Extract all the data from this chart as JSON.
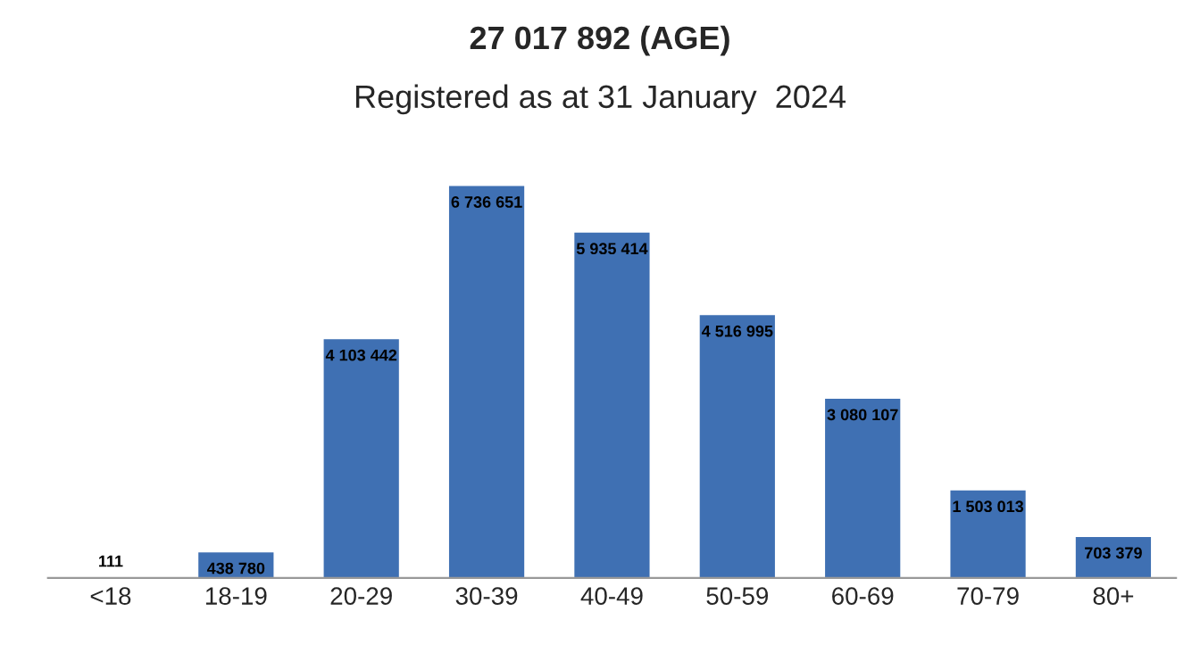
{
  "chart_data": {
    "type": "bar",
    "title": "27 017 892 (AGE)",
    "subtitle": "Registered as at 31 January  2024",
    "categories": [
      "<18",
      "18-19",
      "20-29",
      "30-39",
      "40-49",
      "50-59",
      "60-69",
      "70-79",
      "80+"
    ],
    "values": [
      111,
      438780,
      4103442,
      6736651,
      5935414,
      4516995,
      3080107,
      1503013,
      703379
    ],
    "value_labels": [
      "111",
      "438 780",
      "4 103 442",
      "6 736 651",
      "5 935 414",
      "4 516 995",
      "3 080 107",
      "1 503 013",
      "703 379"
    ],
    "color": "#3f70b3",
    "tick_labels": "x",
    "grid": false,
    "legend": false
  }
}
